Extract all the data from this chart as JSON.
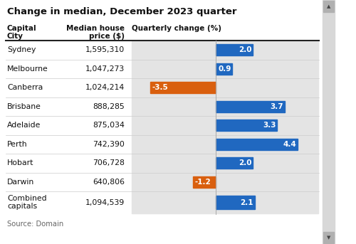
{
  "title": "Change in median, December 2023 quarter",
  "source": "Source: Domain",
  "col1_header_line1": "Capital",
  "col1_header_line2": "City",
  "col2_header_line1": "Median house",
  "col2_header_line2": "price ($)",
  "col3_header": "Quarterly change (%)",
  "cities": [
    "Sydney",
    "Melbourne",
    "Canberra",
    "Brisbane",
    "Adelaide",
    "Perth",
    "Hobart",
    "Darwin",
    "Combined\ncapitals"
  ],
  "prices": [
    "1,595,310",
    "1,047,273",
    "1,024,214",
    "888,285",
    "875,034",
    "742,390",
    "706,728",
    "640,806",
    "1,094,539"
  ],
  "changes": [
    2.0,
    0.9,
    -3.5,
    3.7,
    3.3,
    4.4,
    2.0,
    -1.2,
    2.1
  ],
  "bar_colors": [
    "#2068c0",
    "#2068c0",
    "#d95f0e",
    "#2068c0",
    "#2068c0",
    "#2068c0",
    "#2068c0",
    "#d95f0e",
    "#2068c0"
  ],
  "fig_bg": "#ffffff",
  "bar_bg_color": "#e4e4e4",
  "scrollbar_bg": "#d8d8d8",
  "scrollbar_btn": "#b0b0b0",
  "x_min": -4.5,
  "x_max": 5.5
}
